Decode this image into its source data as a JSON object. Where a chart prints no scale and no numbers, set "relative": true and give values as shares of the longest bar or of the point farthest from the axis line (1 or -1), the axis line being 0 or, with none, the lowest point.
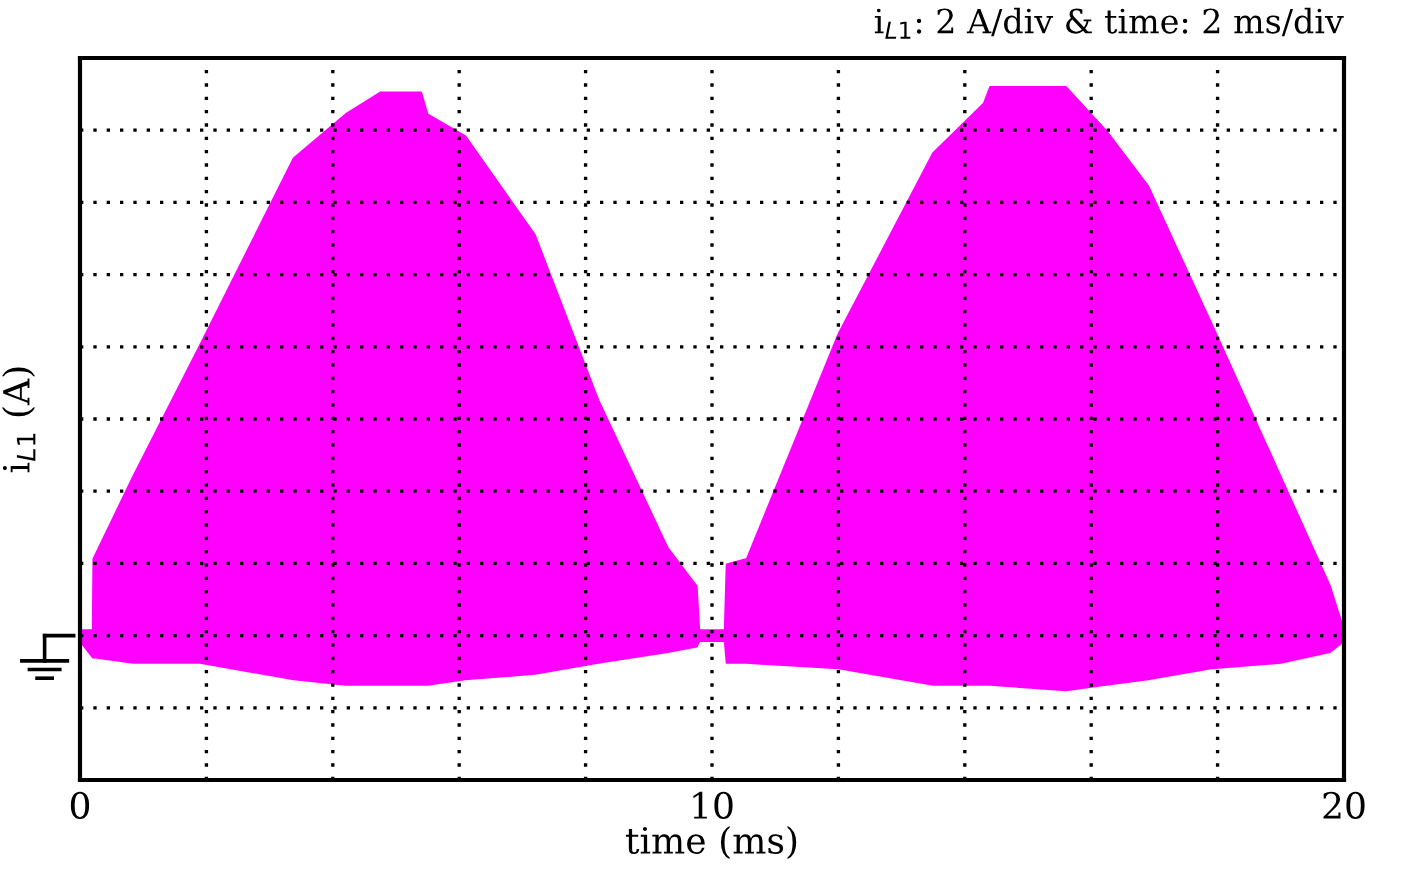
{
  "chart_data": {
    "type": "area",
    "title": "i$_{L1}$: 2 A/div & time: 2 ms/div",
    "xlabel": "time (ms)",
    "ylabel": "i$_{L1}$ (A)",
    "relative": true,
    "xlim": [
      0,
      20
    ],
    "xticks": [
      0,
      {
        "value": 2,
        "label": null
      },
      {
        "value": 4,
        "label": null
      },
      {
        "value": 6,
        "label": null
      },
      {
        "value": 8,
        "label": null
      },
      10,
      {
        "value": 12,
        "label": null
      },
      {
        "value": 14,
        "label": null
      },
      {
        "value": 16,
        "label": null
      },
      {
        "value": 18,
        "label": null
      },
      20
    ],
    "grid": true,
    "line_style": "dotted",
    "series": [
      {
        "color": "#ff00ff",
        "x": [
          0,
          0.2,
          0.21,
          0.84,
          1.9,
          3.38,
          4.2,
          4.75,
          5.4,
          5.5,
          6.1,
          7.2,
          8.2,
          9.3,
          9.76,
          9.8,
          10.2,
          10.23,
          10.55,
          12.0,
          13.5,
          14.3,
          14.4,
          15.6,
          16.24,
          16.9,
          17.9,
          19.0,
          19.78,
          20
        ],
        "values": [
          0.01,
          0.01,
          0.14,
          0.29,
          0.53,
          0.87,
          0.95,
          0.99,
          0.99,
          0.95,
          0.91,
          0.73,
          0.43,
          0.16,
          0.09,
          0.01,
          0.01,
          0.13,
          0.14,
          0.55,
          0.88,
          0.97,
          1,
          1,
          0.92,
          0.82,
          0.57,
          0.29,
          0.09,
          0.01
        ]
      },
      {
        "color": "#ff00ff",
        "x": [
          0,
          0.2,
          0.21,
          0.84,
          1.9,
          3.38,
          4.2,
          4.75,
          5.4,
          5.5,
          6.1,
          7.2,
          8.2,
          9.3,
          9.76,
          9.8,
          10.2,
          10.23,
          10.55,
          12.0,
          13.5,
          14.3,
          14.4,
          15.6,
          16.24,
          16.9,
          17.9,
          19.0,
          19.78,
          20
        ],
        "values": [
          -0.01,
          -0.04,
          -0.04,
          -0.05,
          -0.05,
          -0.08,
          -0.09,
          -0.09,
          -0.09,
          -0.09,
          -0.08,
          -0.07,
          -0.05,
          -0.03,
          -0.02,
          -0.01,
          -0.01,
          -0.05,
          -0.05,
          -0.06,
          -0.09,
          -0.09,
          -0.09,
          -0.1,
          -0.09,
          -0.08,
          -0.06,
          -0.05,
          -0.03,
          -0.01
        ]
      }
    ]
  }
}
